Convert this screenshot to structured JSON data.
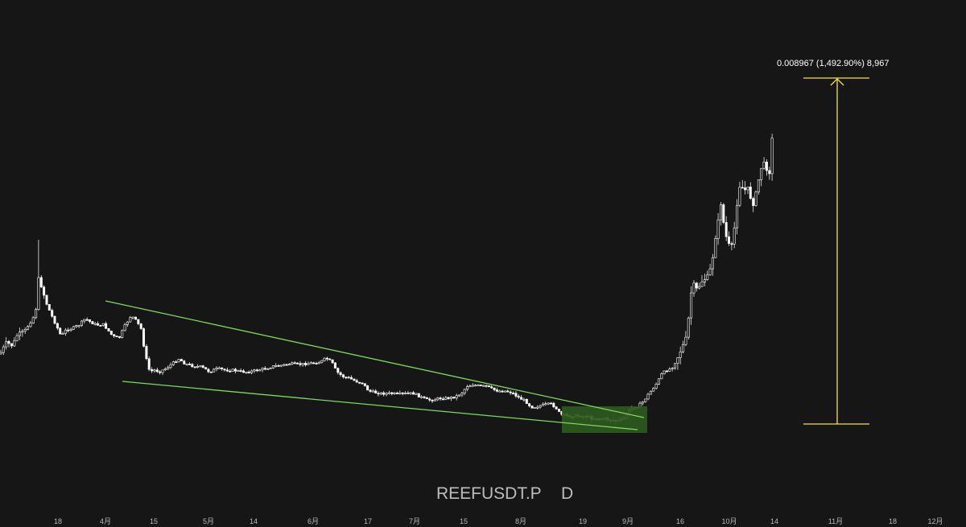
{
  "chart_data": {
    "type": "candlestick",
    "symbol": "REEFUSDT.P",
    "interval": "D",
    "x_tick_labels": [
      "18",
      "4月",
      "15",
      "5月",
      "14",
      "6月",
      "17",
      "7月",
      "15",
      "8月",
      "19",
      "9月",
      "16",
      "10月",
      "14",
      "11月",
      "18",
      "12月"
    ],
    "price_units_note": "",
    "candles_visible": true,
    "measurement": {
      "label": "0.008967 (1,492.90%) 8,967",
      "price_change": 0.008967,
      "percent_change": 1492.9,
      "bars": 8967
    },
    "annotations": [
      {
        "type": "trend-line",
        "name": "upper-wedge-line"
      },
      {
        "type": "trend-line",
        "name": "lower-wedge-line"
      },
      {
        "type": "zone",
        "name": "breakout-zone"
      }
    ],
    "colors": {
      "background": "#161616",
      "candle": "#ffffff",
      "trend_line": "#7ed957",
      "zone": "#2e5a1f",
      "measure": "#f5e04a"
    }
  }
}
